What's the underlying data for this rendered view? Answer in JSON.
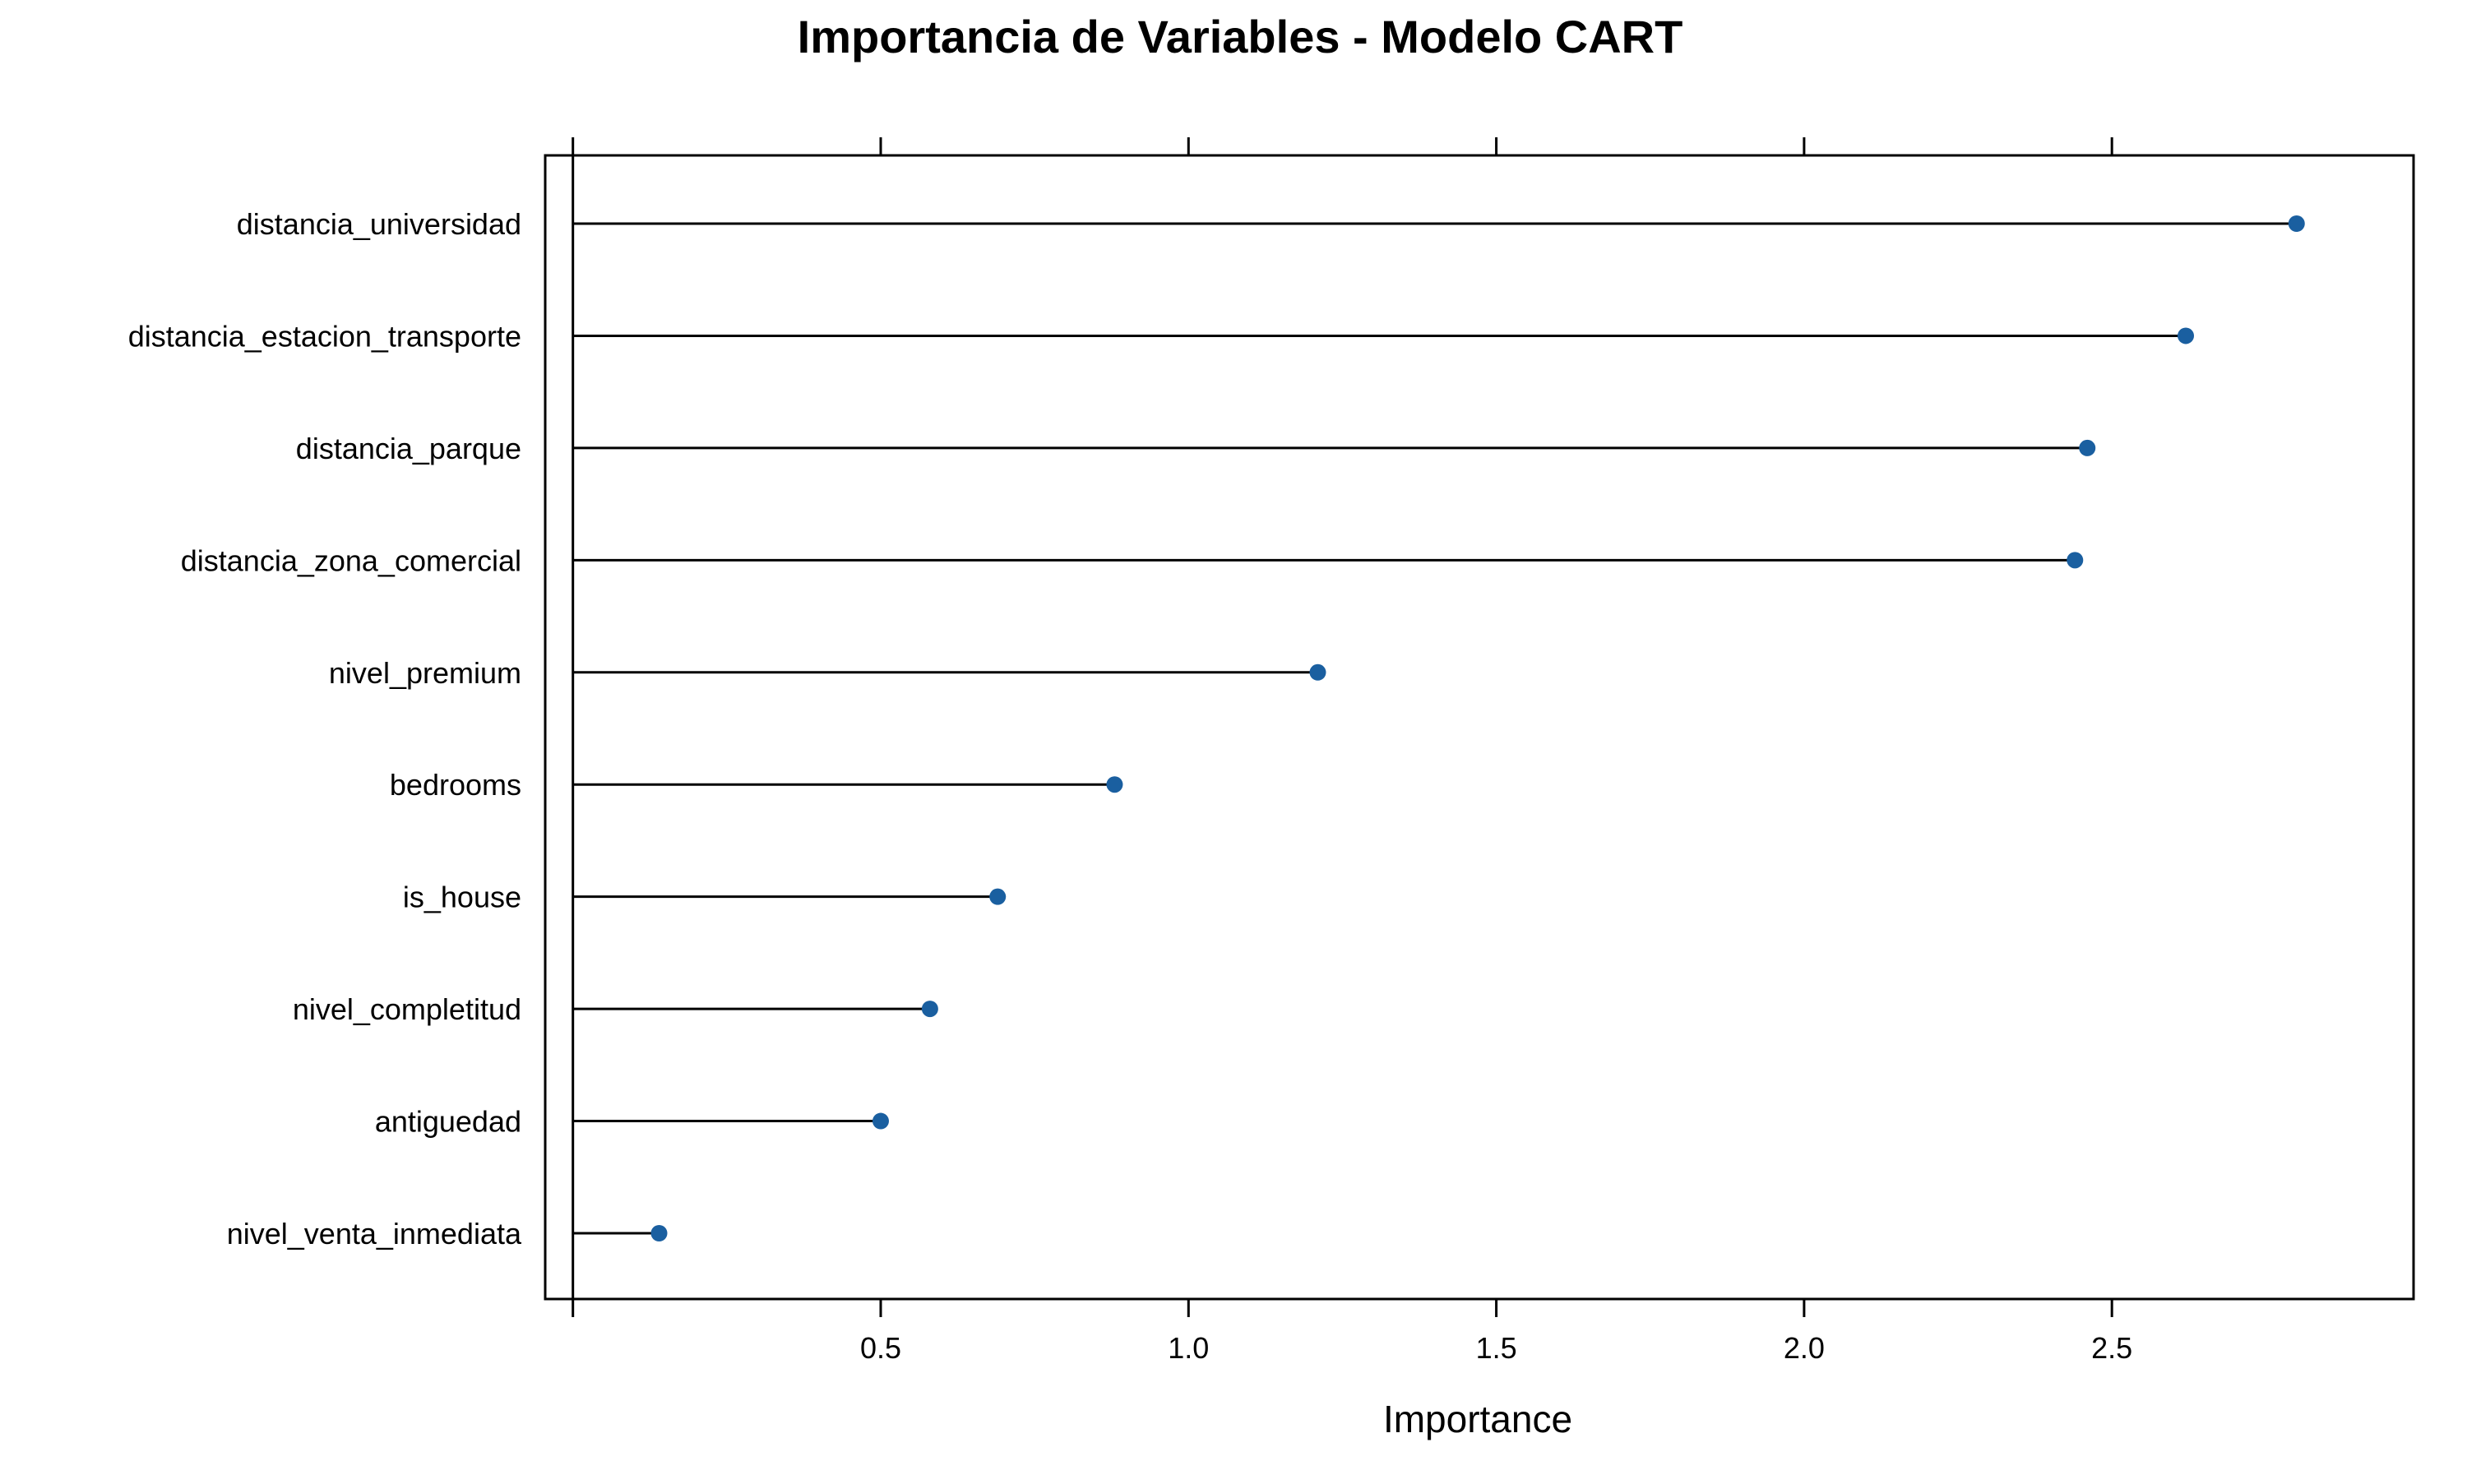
{
  "chart_data": {
    "type": "lollipop",
    "title": "Importancia de Variables - Modelo CART",
    "xlabel": "Importance",
    "ylabel": "",
    "xlim": [
      -0.045,
      2.99
    ],
    "ticks": [
      0.5,
      1.0,
      1.5,
      2.0,
      2.5
    ],
    "tick_labels": [
      "0.5",
      "1.0",
      "1.5",
      "2.0",
      "2.5"
    ],
    "baseline": 0,
    "point_color": "#1a5fa0",
    "line_color": "#000000",
    "categories": [
      "distancia_universidad",
      "distancia_estacion_transporte",
      "distancia_parque",
      "distancia_zona_comercial",
      "nivel_premium",
      "bedrooms",
      "is_house",
      "nivel_completitud",
      "antiguedad",
      "nivel_venta_inmediata"
    ],
    "values": [
      2.8,
      2.62,
      2.46,
      2.44,
      1.21,
      0.88,
      0.69,
      0.58,
      0.5,
      0.14
    ]
  }
}
